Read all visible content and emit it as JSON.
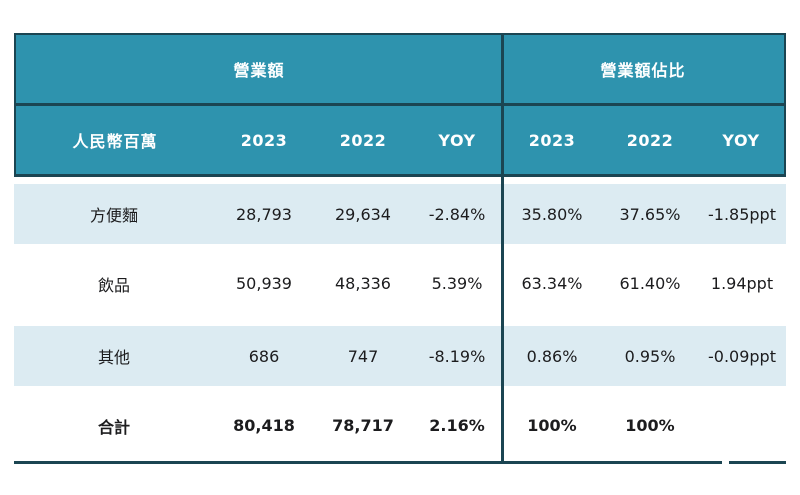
{
  "colors": {
    "header_teal": "#2E93AE",
    "border_dark": "#1B4552",
    "stripe_blue": "#DCEBF2",
    "text": "#1C1C1E"
  },
  "chart_data": {
    "type": "table",
    "column_groups": [
      {
        "label": "營業額",
        "span": 3
      },
      {
        "label": "營業額佔比",
        "span": 3
      }
    ],
    "columns": [
      "人民幣百萬",
      "2023",
      "2022",
      "YOY",
      "2023",
      "2022",
      "YOY"
    ],
    "rows": [
      [
        "方便麵",
        "28,793",
        "29,634",
        "-2.84%",
        "35.80%",
        "37.65%",
        "-1.85ppt"
      ],
      [
        "飲品",
        "50,939",
        "48,336",
        "5.39%",
        "63.34%",
        "61.40%",
        "1.94ppt"
      ],
      [
        "其他",
        "686",
        "747",
        "-8.19%",
        "0.86%",
        "0.95%",
        "-0.09ppt"
      ],
      [
        "合計",
        "80,418",
        "78,717",
        "2.16%",
        "100%",
        "100%",
        ""
      ]
    ],
    "notes": {
      "striped_rows": [
        0,
        2
      ],
      "bold_row": 3,
      "units_label": "人民幣百萬",
      "layout": "two column-groups separated by a dark vertical divider"
    }
  }
}
